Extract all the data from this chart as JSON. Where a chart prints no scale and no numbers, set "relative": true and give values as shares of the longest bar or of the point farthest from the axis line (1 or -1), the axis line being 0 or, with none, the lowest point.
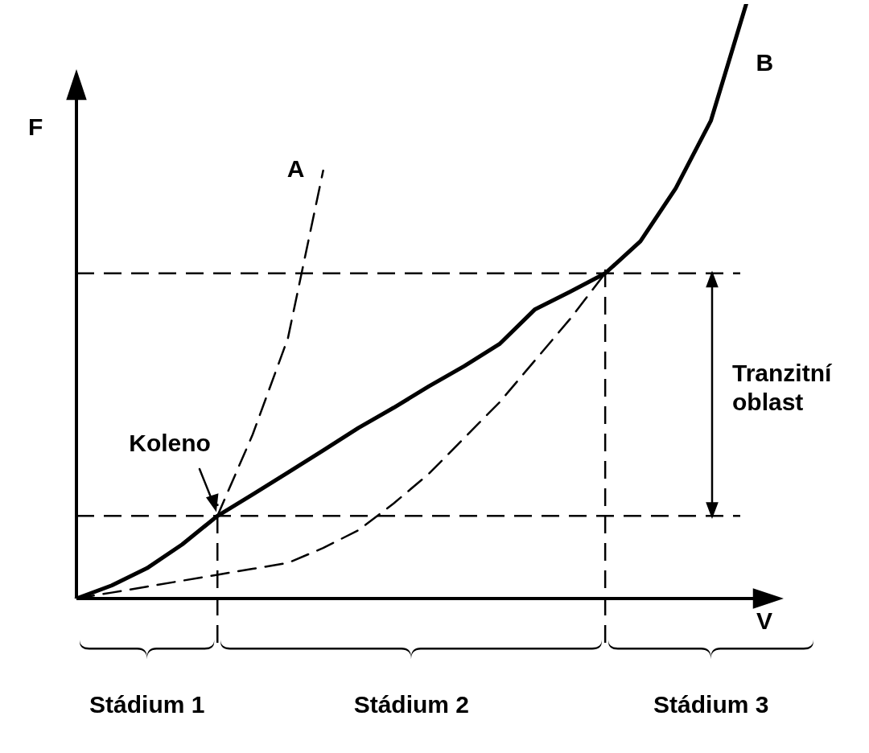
{
  "chart_data": {
    "type": "line",
    "relative": true,
    "xlabel": "V",
    "ylabel": "F",
    "marker": "none",
    "categories": [
      null,
      null,
      null,
      null,
      null,
      null,
      null,
      null,
      null,
      null,
      null,
      null,
      null,
      null,
      null,
      null,
      null,
      null,
      null,
      null,
      null,
      null
    ],
    "series": [
      {
        "name": "B",
        "color": "#000000",
        "line_style": "solid",
        "values": [
          0,
          0.022,
          0.051,
          0.091,
          0.139,
          0.175,
          0.212,
          0.249,
          0.287,
          0.321,
          0.357,
          0.391,
          0.428,
          0.486,
          0.516,
          0.547,
          0.601,
          0.69,
          0.804,
          1,
          null,
          null
        ]
      },
      {
        "name": "A",
        "color": "#000000",
        "line_style": "dashed",
        "values": [
          null,
          null,
          null,
          null,
          0.139,
          0.276,
          0.438,
          0.72,
          null,
          null,
          null,
          null,
          null,
          null,
          null,
          null,
          null,
          null,
          null,
          null,
          null,
          null
        ]
      },
      {
        "color": "#000000",
        "line_style": "dashed",
        "values": [
          0,
          0.01,
          0.02,
          0.03,
          0.04,
          0.05,
          0.06,
          0.085,
          0.115,
          0.16,
          0.21,
          0.27,
          0.33,
          0.4,
          0.47,
          0.547,
          null,
          null,
          null,
          null,
          null,
          null
        ]
      }
    ],
    "ref_lines": [
      {
        "axis": "y",
        "value": 0.139,
        "color": "#000000",
        "line_style": "dashed"
      },
      {
        "axis": "y",
        "value": 0.547,
        "color": "#000000",
        "line_style": "dashed"
      }
    ],
    "annotations": [
      {
        "text": "Koleno",
        "y": 0.139
      },
      "Tranzitní oblast",
      "Stádium 1",
      "Stádium 2",
      "Stádium 3"
    ]
  }
}
